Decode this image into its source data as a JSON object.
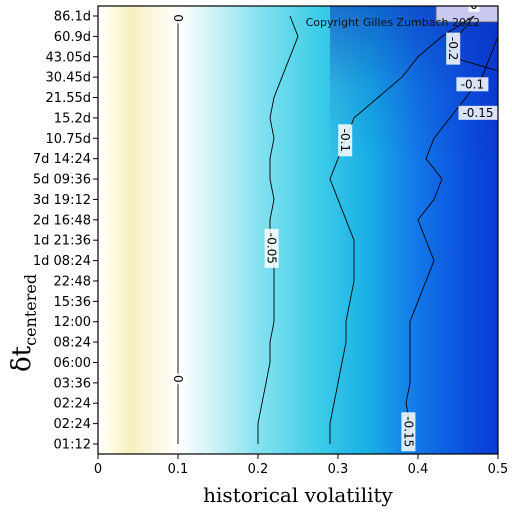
{
  "chart_data": {
    "type": "heatmap",
    "title": "",
    "xlabel": "historical volatility",
    "ylabel_main": "δt",
    "ylabel_sub": "centered",
    "xlim": [
      0,
      0.5
    ],
    "x_ticks": [
      "0",
      "0.1",
      "0.2",
      "0.3",
      "0.4",
      "0.5"
    ],
    "x_tick_values": [
      0,
      0.1,
      0.2,
      0.3,
      0.4,
      0.5
    ],
    "y_ticks": [
      "01:12",
      "02:24",
      "02:24",
      "03:36",
      "06:00",
      "08:24",
      "12:00",
      "15:36",
      "22:48",
      "1d 08:24",
      "1d 21:36",
      "2d 16:48",
      "3d 19:12",
      "5d 09:36",
      "7d 14:24",
      "10.75d",
      "15.2d",
      "21.55d",
      "30.45d",
      "43.05d",
      "60.9d",
      "86.1d"
    ],
    "copyright": "Copyright Gilles Zumbach 2012",
    "contours": [
      {
        "label": "0",
        "x_by_row": [
          0.1,
          0.1,
          0.1,
          0.1,
          0.1,
          0.1,
          0.1,
          0.1,
          0.1,
          0.1,
          0.1,
          0.1,
          0.1,
          0.1,
          0.1,
          0.1,
          0.1,
          0.1,
          0.1,
          0.1,
          0.1,
          0.1
        ]
      },
      {
        "label": "-0.05",
        "x_by_row": [
          0.2,
          0.2,
          0.205,
          0.21,
          0.215,
          0.215,
          0.22,
          0.22,
          0.22,
          0.22,
          0.215,
          0.215,
          0.22,
          0.215,
          0.215,
          0.22,
          0.215,
          0.22,
          0.23,
          0.24,
          0.25,
          0.24
        ]
      },
      {
        "label": "-0.1",
        "x_by_row": [
          0.29,
          0.29,
          0.295,
          0.3,
          0.305,
          0.31,
          0.31,
          0.315,
          0.32,
          0.32,
          0.32,
          0.31,
          0.3,
          0.29,
          0.3,
          0.31,
          0.32,
          0.35,
          0.38,
          0.4,
          0.43,
          0.47
        ]
      },
      {
        "label": "-0.15",
        "x_by_row": [
          0.385,
          0.39,
          0.385,
          0.39,
          0.39,
          0.39,
          0.39,
          0.4,
          0.41,
          0.42,
          0.41,
          0.4,
          0.42,
          0.43,
          0.41,
          0.42,
          0.44,
          0.46,
          0.48,
          0.49,
          0.5,
          0.5
        ]
      },
      {
        "label": "-0.2",
        "x_by_row": [
          null,
          null,
          null,
          null,
          null,
          null,
          null,
          null,
          null,
          null,
          null,
          null,
          null,
          null,
          null,
          null,
          null,
          null,
          null,
          0.44,
          0.45,
          0.47
        ]
      }
    ],
    "contour_label_rows": {
      "0": [
        3.2,
        20.9
      ],
      "-0.05": [
        9.6
      ],
      "-0.1": [
        14.9
      ],
      "-0.15": [
        0.6
      ],
      "-0.2": [
        19.4
      ]
    },
    "extra_contour_labels": [
      {
        "text": "-0.1",
        "x": 0.468,
        "row": 17.6
      },
      {
        "text": "-0.15",
        "x": 0.475,
        "row": 16.2
      },
      {
        "text": "0",
        "x": 0.47,
        "row": 21.5
      }
    ],
    "color_scale": [
      "#fffde0",
      "#f5edb2",
      "#ffffff",
      "#8ee8f2",
      "#2ec8e6",
      "#1a78e6",
      "#0a3fd8"
    ]
  }
}
